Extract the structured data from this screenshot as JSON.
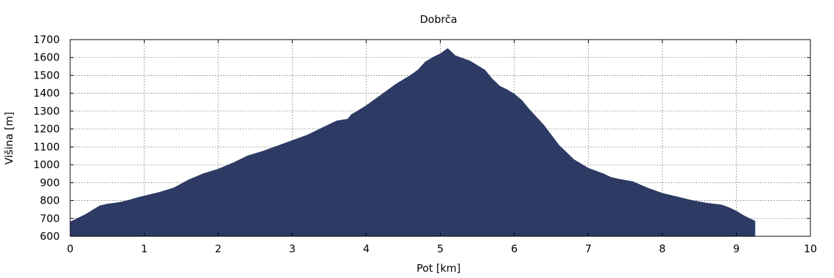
{
  "chart_data": {
    "type": "area",
    "title": "Dobrča",
    "xlabel": "Pot [km]",
    "ylabel": "Višina [m]",
    "xlim": [
      0,
      10
    ],
    "ylim": [
      600,
      1700
    ],
    "xticks": [
      "0",
      "1",
      "2",
      "3",
      "4",
      "5",
      "6",
      "7",
      "8",
      "9",
      "10"
    ],
    "yticks": [
      "600",
      "700",
      "800",
      "900",
      "1000",
      "1100",
      "1200",
      "1300",
      "1400",
      "1500",
      "1600",
      "1700"
    ],
    "grid": true,
    "fill_color": "#2d3a64",
    "x": [
      0,
      0.1,
      0.2,
      0.3,
      0.4,
      0.5,
      0.6,
      0.7,
      0.8,
      0.9,
      1.0,
      1.2,
      1.4,
      1.6,
      1.8,
      2.0,
      2.2,
      2.4,
      2.6,
      2.8,
      3.0,
      3.2,
      3.4,
      3.6,
      3.75,
      3.8,
      4.0,
      4.2,
      4.4,
      4.6,
      4.7,
      4.8,
      4.9,
      5.0,
      5.1,
      5.2,
      5.3,
      5.4,
      5.5,
      5.6,
      5.7,
      5.8,
      5.9,
      6.0,
      6.1,
      6.2,
      6.4,
      6.6,
      6.8,
      7.0,
      7.2,
      7.3,
      7.4,
      7.6,
      7.8,
      8.0,
      8.2,
      8.4,
      8.6,
      8.8,
      8.9,
      9.0,
      9.1,
      9.25
    ],
    "elevation": [
      680,
      700,
      720,
      745,
      770,
      780,
      785,
      792,
      802,
      815,
      825,
      845,
      870,
      915,
      950,
      975,
      1010,
      1050,
      1075,
      1105,
      1135,
      1165,
      1205,
      1245,
      1255,
      1280,
      1330,
      1390,
      1450,
      1500,
      1530,
      1575,
      1600,
      1620,
      1650,
      1610,
      1595,
      1580,
      1555,
      1530,
      1480,
      1440,
      1420,
      1395,
      1360,
      1310,
      1220,
      1110,
      1030,
      980,
      950,
      930,
      920,
      905,
      870,
      840,
      820,
      800,
      785,
      775,
      760,
      740,
      715,
      685
    ]
  }
}
